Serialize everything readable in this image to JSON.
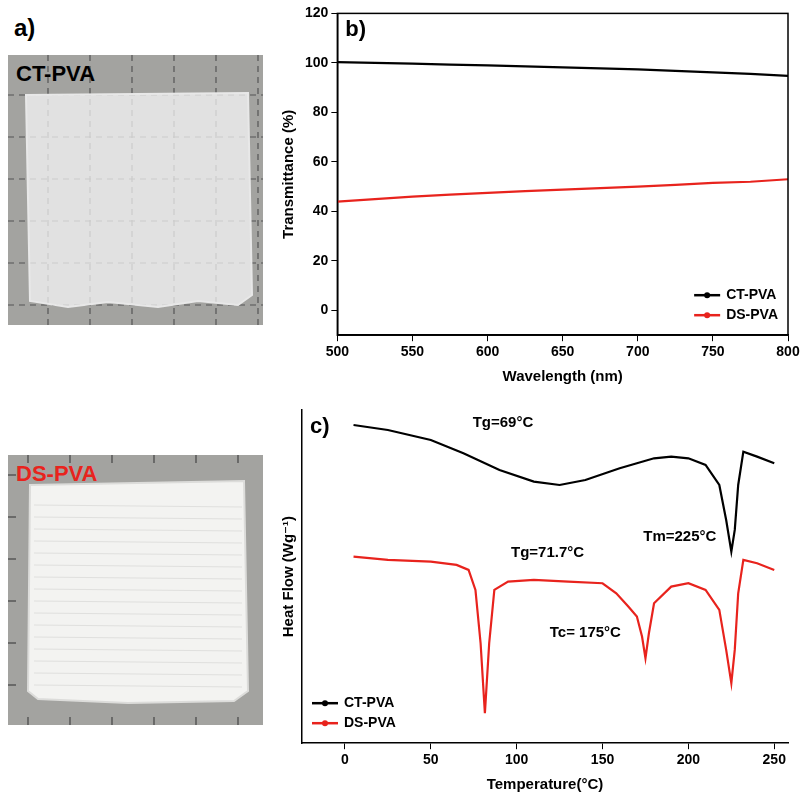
{
  "panel_a": {
    "panel": "a)",
    "photos": [
      {
        "name": "CT-PVA",
        "color": "#000000"
      },
      {
        "name": "DS-PVA",
        "color": "#e8231d"
      }
    ]
  },
  "chart_data": [
    {
      "panel": "b)",
      "type": "line",
      "x_label": "Wavelength (nm)",
      "y_label": "Transmittance (%)",
      "x": [
        500,
        525,
        550,
        575,
        600,
        625,
        650,
        675,
        700,
        725,
        750,
        775,
        800
      ],
      "series": [
        {
          "name": "CT-PVA",
          "color": "#000000",
          "values": [
            100.3,
            100,
            99.7,
            99.3,
            99,
            98.6,
            98.2,
            97.8,
            97.4,
            96.8,
            96.2,
            95.6,
            94.8
          ]
        },
        {
          "name": "DS-PVA",
          "color": "#e8231d",
          "values": [
            44,
            45,
            46,
            46.8,
            47.5,
            48.2,
            48.8,
            49.4,
            50,
            50.7,
            51.5,
            52,
            53
          ]
        }
      ],
      "xlim": [
        500,
        800
      ],
      "xticks": [
        500,
        550,
        600,
        650,
        700,
        750,
        800
      ],
      "ylim": [
        -10,
        120
      ],
      "yticks": [
        0,
        20,
        40,
        60,
        80,
        100,
        120
      ],
      "grid": false,
      "legend": "lower right"
    },
    {
      "panel": "c)",
      "type": "line",
      "x_label": "Temperature(°C)",
      "y_label": "Heat Flow (Wg⁻¹)",
      "series": [
        {
          "name": "CT-PVA",
          "color": "#000000",
          "x": [
            5,
            25,
            50,
            69,
            90,
            110,
            125,
            140,
            160,
            180,
            190,
            200,
            210,
            218,
            222,
            225,
            227,
            229,
            232,
            240,
            250
          ],
          "values": [
            9.55,
            9.4,
            9.1,
            8.7,
            8.2,
            7.85,
            7.75,
            7.9,
            8.25,
            8.55,
            8.6,
            8.55,
            8.35,
            7.75,
            6.7,
            5.75,
            6.4,
            7.75,
            8.75,
            8.6,
            8.4
          ]
        },
        {
          "name": "DS-PVA",
          "color": "#e8231d",
          "x": [
            5,
            25,
            50,
            65,
            72,
            76,
            79,
            81.5,
            84,
            87,
            95,
            110,
            130,
            150,
            158,
            165,
            170,
            173,
            175,
            177,
            180,
            190,
            200,
            210,
            218,
            222,
            225,
            227,
            229,
            232,
            240,
            250
          ],
          "values": [
            5.6,
            5.5,
            5.45,
            5.35,
            5.2,
            4.6,
            3.0,
            0.9,
            3.0,
            4.6,
            4.85,
            4.9,
            4.85,
            4.8,
            4.5,
            4.1,
            3.8,
            3.2,
            2.55,
            3.3,
            4.2,
            4.7,
            4.8,
            4.6,
            4.0,
            2.8,
            1.8,
            2.8,
            4.5,
            5.5,
            5.4,
            5.2
          ]
        }
      ],
      "annotations": [
        {
          "text": "Tg=69°C",
          "x": 92,
          "y": 9.6
        },
        {
          "text": "Tg=71.7°C",
          "x": 118,
          "y": 5.7
        },
        {
          "text": "Tc= 175°C",
          "x": 140,
          "y": 3.3
        },
        {
          "text": "Tm=225°C",
          "x": 195,
          "y": 6.2
        }
      ],
      "xlim": [
        -25,
        258
      ],
      "xticks": [
        0,
        50,
        100,
        150,
        200,
        250
      ],
      "ylim": [
        0,
        10
      ],
      "tick_labels": "x",
      "grid": false,
      "legend": "lower left"
    }
  ]
}
